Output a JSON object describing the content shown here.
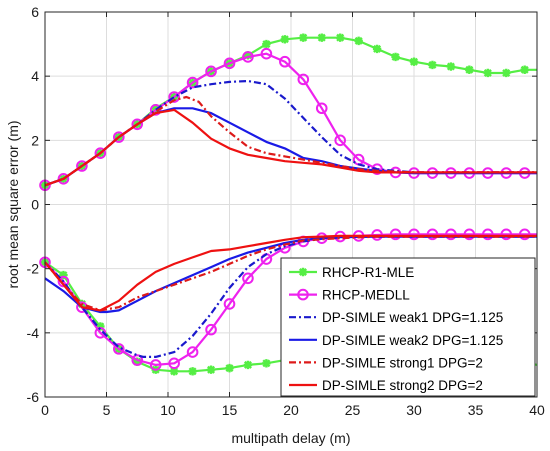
{
  "chart_data": {
    "type": "line",
    "title": "",
    "xlabel": "multipath delay (m)",
    "ylabel": "root mean square error (m)",
    "xlim": [
      0,
      40
    ],
    "ylim": [
      -6,
      6
    ],
    "xticks": [
      0,
      5,
      10,
      15,
      20,
      25,
      30,
      35,
      40
    ],
    "yticks": [
      -6,
      -4,
      -2,
      0,
      2,
      4,
      6
    ],
    "grid": true,
    "legend_position": "bottom-right",
    "series": [
      {
        "name": "RHCP-R1-MLE",
        "color": "#55ee44",
        "dash": "solid",
        "marker": "asterisk",
        "upper": {
          "x": [
            0,
            1.5,
            3,
            4.5,
            6,
            7.5,
            9,
            10.5,
            12,
            13.5,
            15,
            16.5,
            18,
            19.5,
            21,
            22.5,
            24,
            25.5,
            27,
            28.5,
            30,
            31.5,
            33,
            34.5,
            36,
            37.5,
            39,
            40
          ],
          "y": [
            0.6,
            0.8,
            1.2,
            1.6,
            2.1,
            2.5,
            3.0,
            3.35,
            3.8,
            4.15,
            4.4,
            4.65,
            5.0,
            5.15,
            5.2,
            5.2,
            5.2,
            5.1,
            4.85,
            4.6,
            4.45,
            4.35,
            4.3,
            4.2,
            4.1,
            4.1,
            4.2,
            4.2
          ]
        },
        "lower": {
          "x": [
            0,
            1.5,
            3,
            4.5,
            6,
            7.5,
            9,
            10.5,
            12,
            13.5,
            15,
            16.5,
            18,
            19.5,
            21,
            22.5,
            24,
            25.5,
            27,
            28.5,
            30,
            31.5,
            33,
            34.5,
            36,
            37.5,
            39,
            40
          ],
          "y": [
            -1.8,
            -2.2,
            -3.1,
            -3.8,
            -4.5,
            -4.9,
            -5.15,
            -5.2,
            -5.2,
            -5.15,
            -5.1,
            -5.0,
            -4.95,
            -4.85,
            -4.75,
            -4.7,
            -4.65,
            -4.65,
            -4.6,
            -4.6,
            -4.65,
            -4.65,
            -4.7,
            -4.7,
            -4.75,
            -4.8,
            -4.9,
            -5.0
          ]
        }
      },
      {
        "name": "RHCP-MEDLL",
        "color": "#ee22ee",
        "dash": "solid",
        "marker": "circle",
        "upper": {
          "x": [
            0,
            1.5,
            3,
            4.5,
            6,
            7.5,
            9,
            10.5,
            12,
            13.5,
            15,
            16.5,
            18,
            19.5,
            21,
            22.5,
            24,
            25.5,
            27,
            28.5,
            30,
            31.5,
            33,
            34.5,
            36,
            37.5,
            39,
            40
          ],
          "y": [
            0.6,
            0.8,
            1.2,
            1.6,
            2.1,
            2.5,
            2.95,
            3.35,
            3.8,
            4.15,
            4.4,
            4.6,
            4.7,
            4.45,
            3.9,
            3.0,
            2.0,
            1.4,
            1.1,
            1.0,
            0.98,
            0.98,
            0.98,
            0.98,
            0.98,
            0.98,
            0.98,
            0.98
          ]
        },
        "lower": {
          "x": [
            0,
            1.5,
            3,
            4.5,
            6,
            7.5,
            9,
            10.5,
            12,
            13.5,
            15,
            16.5,
            18,
            19.5,
            21,
            22.5,
            24,
            25.5,
            27,
            28.5,
            30,
            31.5,
            33,
            34.5,
            36,
            37.5,
            39,
            40
          ],
          "y": [
            -1.8,
            -2.4,
            -3.2,
            -4.0,
            -4.5,
            -4.85,
            -5.0,
            -4.95,
            -4.6,
            -3.9,
            -3.1,
            -2.3,
            -1.7,
            -1.35,
            -1.15,
            -1.05,
            -1.0,
            -0.98,
            -0.95,
            -0.93,
            -0.93,
            -0.93,
            -0.93,
            -0.93,
            -0.93,
            -0.93,
            -0.93,
            -0.93
          ]
        }
      },
      {
        "name": "DP-SIMLE weak1 DPG=1.125",
        "color": "#1a1acc",
        "dash": "dashdot",
        "marker": "none",
        "upper": {
          "x": [
            0,
            1.5,
            3,
            4.5,
            6,
            7.5,
            9,
            10.5,
            12,
            13.5,
            15,
            16.5,
            18,
            19.5,
            21,
            22.5,
            24,
            25.5,
            27,
            28.5,
            30,
            32,
            34,
            36,
            38,
            40
          ],
          "y": [
            0.6,
            0.8,
            1.2,
            1.6,
            2.1,
            2.5,
            2.95,
            3.35,
            3.65,
            3.75,
            3.82,
            3.85,
            3.75,
            3.3,
            2.7,
            2.1,
            1.55,
            1.25,
            1.1,
            1.05,
            1.0,
            1.0,
            1.0,
            1.0,
            1.0,
            1.0
          ]
        },
        "lower": {
          "x": [
            0,
            1.5,
            3,
            4.5,
            6,
            7.5,
            8,
            9,
            10.5,
            12,
            13.5,
            15,
            16.5,
            18,
            19.5,
            21,
            22.5,
            24,
            25.5,
            27,
            30,
            34,
            40
          ],
          "y": [
            -1.8,
            -2.4,
            -3.2,
            -3.9,
            -4.45,
            -4.7,
            -4.75,
            -4.75,
            -4.6,
            -4.1,
            -3.4,
            -2.6,
            -1.95,
            -1.55,
            -1.3,
            -1.15,
            -1.07,
            -1.03,
            -1.0,
            -1.0,
            -1.0,
            -1.0,
            -1.0
          ]
        }
      },
      {
        "name": "DP-SIMLE weak2 DPG=1.125",
        "color": "#1a1ae6",
        "dash": "solid",
        "marker": "none",
        "upper": {
          "x": [
            0,
            1.5,
            3,
            4.5,
            6,
            7.5,
            9,
            10.5,
            12,
            13.5,
            15,
            16.5,
            18,
            19.5,
            21,
            22.5,
            24,
            25.5,
            27,
            28.5,
            30,
            32,
            34,
            36,
            38,
            40
          ],
          "y": [
            0.6,
            0.8,
            1.2,
            1.6,
            2.1,
            2.5,
            2.85,
            3.0,
            3.0,
            2.85,
            2.55,
            2.25,
            1.95,
            1.75,
            1.45,
            1.35,
            1.2,
            1.12,
            1.05,
            1.0,
            0.98,
            0.98,
            0.98,
            0.98,
            0.98,
            0.98
          ]
        },
        "lower": {
          "x": [
            0,
            1.5,
            3,
            4.5,
            5,
            6,
            7.5,
            9,
            10.5,
            12,
            13.5,
            15,
            16.5,
            18,
            19.5,
            21,
            22.5,
            24,
            27,
            30,
            34,
            40
          ],
          "y": [
            -2.3,
            -2.7,
            -3.2,
            -3.35,
            -3.35,
            -3.3,
            -3.0,
            -2.7,
            -2.45,
            -2.2,
            -1.95,
            -1.7,
            -1.5,
            -1.35,
            -1.2,
            -1.1,
            -1.05,
            -1.02,
            -1.0,
            -1.0,
            -1.0,
            -1.0
          ]
        }
      },
      {
        "name": "DP-SIMLE strong1 DPG=2",
        "color": "#dd1a1a",
        "dash": "dashdot",
        "marker": "none",
        "upper": {
          "x": [
            0,
            1.5,
            3,
            4.5,
            6,
            7.5,
            9,
            10.5,
            11.5,
            12.5,
            13.5,
            15,
            16.5,
            18,
            19.5,
            21,
            22.5,
            24,
            25.5,
            27,
            30,
            34,
            40
          ],
          "y": [
            0.6,
            0.8,
            1.2,
            1.6,
            2.1,
            2.5,
            2.9,
            3.25,
            3.35,
            3.2,
            2.75,
            2.25,
            1.8,
            1.6,
            1.5,
            1.4,
            1.3,
            1.2,
            1.1,
            1.05,
            1.0,
            1.0,
            1.0
          ]
        },
        "lower": {
          "x": [
            0,
            1.5,
            3,
            4.5,
            6,
            7.5,
            9,
            10.5,
            12,
            13.5,
            15,
            16.5,
            18,
            19.5,
            21,
            24,
            27,
            30,
            34,
            40
          ],
          "y": [
            -1.8,
            -2.5,
            -3.1,
            -3.3,
            -3.2,
            -2.9,
            -2.7,
            -2.5,
            -2.3,
            -2.1,
            -1.85,
            -1.6,
            -1.4,
            -1.25,
            -1.12,
            -1.05,
            -1.0,
            -1.0,
            -1.0,
            -1.0
          ]
        }
      },
      {
        "name": "DP-SIMLE strong2 DPG=2",
        "color": "#ee1111",
        "dash": "solid",
        "marker": "none",
        "upper": {
          "x": [
            0,
            1.5,
            3,
            4.5,
            6,
            7.5,
            9,
            10.5,
            12,
            13.5,
            15,
            16.5,
            18,
            19.5,
            21,
            22.5,
            24,
            25.5,
            27,
            28.5,
            30,
            32,
            34,
            36,
            38,
            40
          ],
          "y": [
            0.6,
            0.8,
            1.2,
            1.6,
            2.1,
            2.5,
            2.85,
            2.95,
            2.55,
            2.05,
            1.75,
            1.55,
            1.45,
            1.35,
            1.3,
            1.25,
            1.15,
            1.05,
            1.0,
            1.0,
            1.0,
            1.0,
            1.0,
            1.0,
            1.0,
            1.0
          ]
        },
        "lower": {
          "x": [
            0,
            1.5,
            3,
            4.5,
            6,
            7.5,
            9,
            10.5,
            12,
            13.5,
            15,
            16.5,
            18,
            19.5,
            21,
            22.5,
            24,
            27,
            30,
            34,
            40
          ],
          "y": [
            -1.8,
            -2.5,
            -3.2,
            -3.3,
            -3.0,
            -2.5,
            -2.1,
            -1.85,
            -1.65,
            -1.45,
            -1.4,
            -1.3,
            -1.2,
            -1.1,
            -1.02,
            -1.0,
            -0.98,
            -0.98,
            -0.98,
            -0.98,
            -0.98
          ]
        }
      }
    ]
  }
}
